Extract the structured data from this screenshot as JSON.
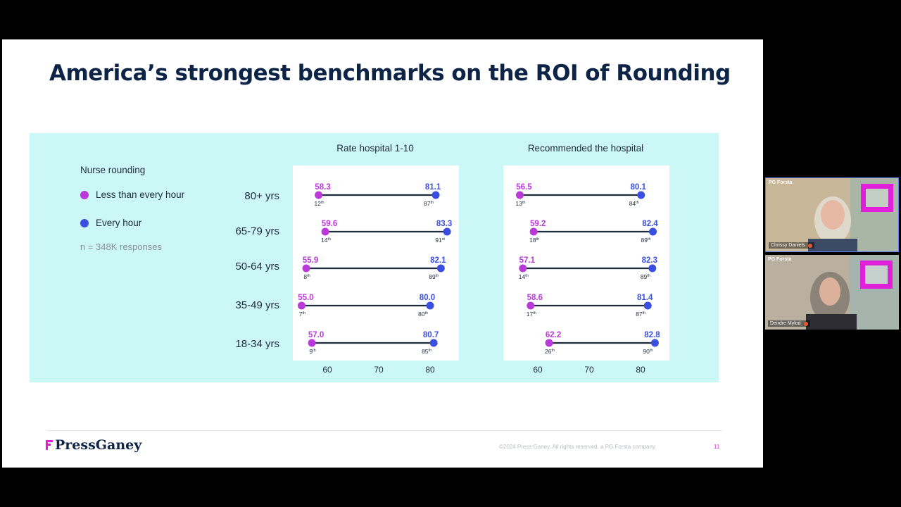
{
  "slide": {
    "title": "America’s strongest benchmarks on the ROI of Rounding",
    "legend": {
      "title": "Nurse rounding",
      "items": [
        {
          "label": "Less than every hour",
          "color": "#b93ad8"
        },
        {
          "label": "Every hour",
          "color": "#3a4fe0"
        }
      ],
      "n": "n = 348K responses"
    },
    "ages": [
      "80+ yrs",
      "65-79 yrs",
      "50-64 yrs",
      "35-49 yrs",
      "18-34 yrs"
    ],
    "charts": [
      {
        "title": "Rate hospital 1-10",
        "ticks": [
          "60",
          "70",
          "80"
        ],
        "rows": [
          {
            "low": 58.3,
            "low_label": "58.3",
            "low_pct": "12",
            "low_suf": "th",
            "high": 81.1,
            "high_label": "81.1",
            "high_pct": "87",
            "high_suf": "th"
          },
          {
            "low": 59.6,
            "low_label": "59.6",
            "low_pct": "14",
            "low_suf": "th",
            "high": 83.3,
            "high_label": "83.3",
            "high_pct": "91",
            "high_suf": "st"
          },
          {
            "low": 55.9,
            "low_label": "55.9",
            "low_pct": "8",
            "low_suf": "th",
            "high": 82.1,
            "high_label": "82.1",
            "high_pct": "89",
            "high_suf": "th"
          },
          {
            "low": 55.0,
            "low_label": "55.0",
            "low_pct": "7",
            "low_suf": "th",
            "high": 80.0,
            "high_label": "80.0",
            "high_pct": "80",
            "high_suf": "th"
          },
          {
            "low": 57.0,
            "low_label": "57.0",
            "low_pct": "9",
            "low_suf": "th",
            "high": 80.7,
            "high_label": "80.7",
            "high_pct": "85",
            "high_suf": "th"
          }
        ]
      },
      {
        "title": "Recommended the hospital",
        "ticks": [
          "60",
          "70",
          "80"
        ],
        "rows": [
          {
            "low": 56.5,
            "low_label": "56.5",
            "low_pct": "13",
            "low_suf": "th",
            "high": 80.1,
            "high_label": "80.1",
            "high_pct": "84",
            "high_suf": "th"
          },
          {
            "low": 59.2,
            "low_label": "59.2",
            "low_pct": "18",
            "low_suf": "th",
            "high": 82.4,
            "high_label": "82.4",
            "high_pct": "89",
            "high_suf": "th"
          },
          {
            "low": 57.1,
            "low_label": "57.1",
            "low_pct": "14",
            "low_suf": "th",
            "high": 82.3,
            "high_label": "82.3",
            "high_pct": "89",
            "high_suf": "th"
          },
          {
            "low": 58.6,
            "low_label": "58.6",
            "low_pct": "17",
            "low_suf": "th",
            "high": 81.4,
            "high_label": "81.4",
            "high_pct": "87",
            "high_suf": "th"
          },
          {
            "low": 62.2,
            "low_label": "62.2",
            "low_pct": "26",
            "low_suf": "th",
            "high": 82.8,
            "high_label": "82.8",
            "high_pct": "90",
            "high_suf": "th"
          }
        ]
      }
    ],
    "footer": {
      "logo": "PressGaney",
      "copyright": "©2024 Press Ganey. All rights reserved. a PG Forsta company.",
      "page": "11"
    }
  },
  "participants": [
    {
      "brand": "PG Forsta",
      "name": "Chrissy Daniels",
      "active": true
    },
    {
      "brand": "PG Forsta",
      "name": "Deirdre Mylod",
      "active": false
    }
  ],
  "colors": {
    "low": "#b93ad8",
    "high": "#3a4fe0",
    "line": "#1e2b3d",
    "brand_pink": "#e020d8"
  }
}
